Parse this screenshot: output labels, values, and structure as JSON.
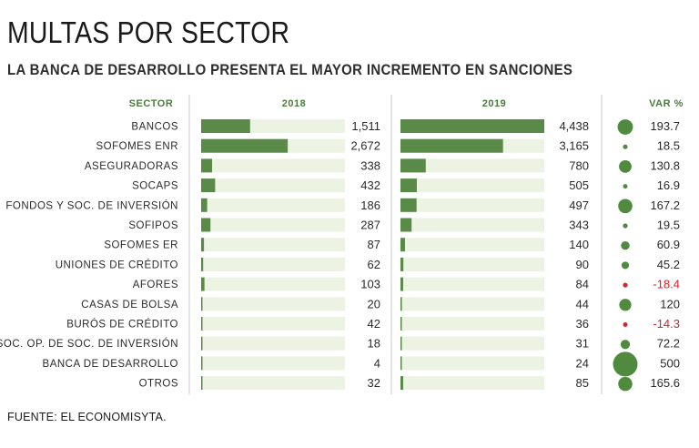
{
  "title": "MULTAS POR SECTOR",
  "subtitle": "LA BANCA DE DESARROLLO PRESENTA EL MAYOR INCREMENTO EN SANCIONES",
  "source": "FUENTE: EL ECONOMISYTA.",
  "colors": {
    "bar": "#5a8a48",
    "track": "#edf3e3",
    "header": "#4a7a3d",
    "bubble": "#4f8a3f",
    "negative": "#d0272e",
    "divider": "#c9c9c9"
  },
  "chart_data": {
    "type": "bar",
    "title": "MULTAS POR SECTOR",
    "headers": {
      "sector": "SECTOR",
      "y2018": "2018",
      "y2019": "2019",
      "var": "VAR %"
    },
    "categories": [
      "BANCOS",
      "SOFOMES ENR",
      "ASEGURADORAS",
      "SOCAPS",
      "FONDOS Y SOC. DE INVERSIÓN",
      "SOFIPOS",
      "SOFOMES ER",
      "UNIONES DE CRÉDITO",
      "AFORES",
      "CASAS DE BOLSA",
      "BURÓS DE CRÉDITO",
      "SOC. OP. DE SOC. DE INVERSIÓN",
      "BANCA DE DESARROLLO",
      "OTROS"
    ],
    "series": [
      {
        "name": "2018",
        "values": [
          1511,
          2672,
          338,
          432,
          186,
          287,
          87,
          62,
          103,
          20,
          42,
          18,
          4,
          32
        ],
        "labels": [
          "1,511",
          "2,672",
          "338",
          "432",
          "186",
          "287",
          "87",
          "62",
          "103",
          "20",
          "42",
          "18",
          "4",
          "32"
        ]
      },
      {
        "name": "2019",
        "values": [
          4438,
          3165,
          780,
          505,
          497,
          343,
          140,
          90,
          84,
          44,
          36,
          31,
          24,
          85
        ],
        "labels": [
          "4,438",
          "3,165",
          "780",
          "505",
          "497",
          "343",
          "140",
          "90",
          "84",
          "44",
          "36",
          "31",
          "24",
          "85"
        ]
      },
      {
        "name": "VAR %",
        "values": [
          193.7,
          18.5,
          130.8,
          16.9,
          167.2,
          19.5,
          60.9,
          45.2,
          -18.4,
          120,
          -14.3,
          72.2,
          500,
          165.6
        ],
        "labels": [
          "193.7",
          "18.5",
          "130.8",
          "16.9",
          "167.2",
          "19.5",
          "60.9",
          "45.2",
          "-18.4",
          "120",
          "-14.3",
          "72.2",
          "500",
          "165.6"
        ]
      }
    ]
  }
}
